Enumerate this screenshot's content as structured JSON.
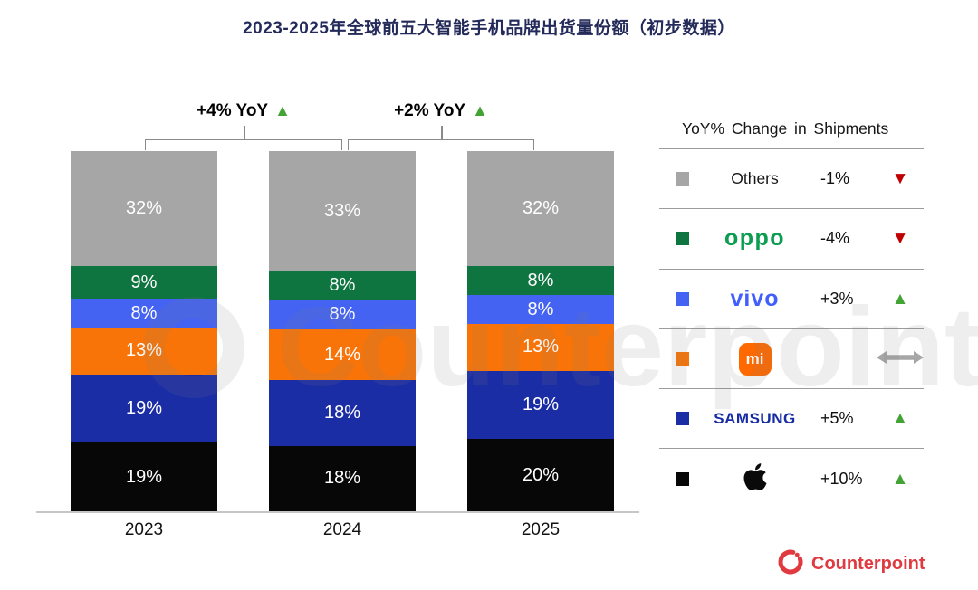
{
  "title": "2023-2025年全球前五大智能手机品牌出货量份额（初步数据）",
  "chart_data": {
    "type": "bar",
    "subtype": "stacked-100-percent",
    "title": "2023-2025年全球前五大智能手机品牌出货量份额（初步数据）",
    "unit": "%",
    "categories": [
      "2023",
      "2024",
      "2025"
    ],
    "series": [
      {
        "name": "Others",
        "color": "#a6a6a6",
        "values": [
          32,
          33,
          32
        ]
      },
      {
        "name": "OPPO",
        "color": "#0e7440",
        "values": [
          9,
          8,
          8
        ]
      },
      {
        "name": "vivo",
        "color": "#4463f2",
        "values": [
          8,
          8,
          8
        ]
      },
      {
        "name": "Xiaomi",
        "color": "#f97408",
        "values": [
          13,
          14,
          13
        ]
      },
      {
        "name": "Samsung",
        "color": "#1b2da5",
        "values": [
          19,
          18,
          19
        ]
      },
      {
        "name": "Apple",
        "color": "#070707",
        "values": [
          19,
          18,
          20
        ]
      }
    ],
    "annotations": [
      {
        "label": "+4% YoY",
        "glyph": "▲",
        "between": "2023-2024",
        "direction": "up"
      },
      {
        "label": "+2% YoY",
        "glyph": "▲",
        "between": "2024-2025",
        "direction": "up"
      }
    ],
    "ylim": [
      0,
      100
    ],
    "grid": false,
    "legend_position": "right"
  },
  "legend": {
    "header": "YoY% Change in Shipments",
    "rows": [
      {
        "brand": "Others",
        "change": "-1%",
        "direction": "down",
        "indicator": "▼"
      },
      {
        "brand": "oppo",
        "change": "-4%",
        "direction": "down",
        "indicator": "▼"
      },
      {
        "brand": "vivo",
        "change": "+3%",
        "direction": "up",
        "indicator": "▲"
      },
      {
        "brand": "mi",
        "change": "",
        "direction": "flat",
        "indicator": ""
      },
      {
        "brand": "SAMSUNG",
        "change": "+5%",
        "direction": "up",
        "indicator": "▲"
      },
      {
        "brand": "Apple",
        "change": "+10%",
        "direction": "up",
        "indicator": "▲"
      }
    ]
  },
  "watermark": "Counterpoint",
  "footer": {
    "brand": "Counterpoint"
  },
  "brand_colors": {
    "oppo": "#0b9d50",
    "vivo": "#415fff",
    "samsung": "#172ba3",
    "xiaomi": "#ff6900",
    "counterpoint": "#e03a40"
  },
  "indicator_colors": {
    "up": "#44a335",
    "down": "#c00000",
    "flat": "#a6a6a6"
  }
}
